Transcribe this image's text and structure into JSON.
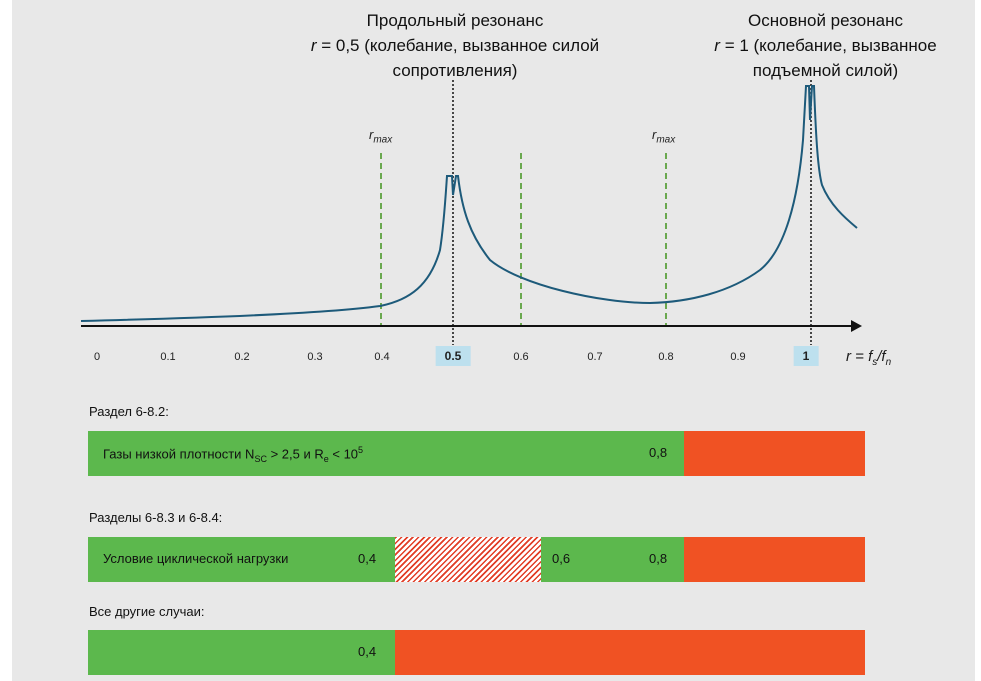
{
  "diagram": {
    "resonance_left": {
      "line1": "Продольный резонанс",
      "line2_var": "r",
      "line2_rest": " = 0,5 (колебание, вызванное силой",
      "line3": "сопротивления)"
    },
    "resonance_right": {
      "line1": "Основной резонанс",
      "line2_var": "r",
      "line2_rest": " = 1 (колебание, вызванное",
      "line3": "подъемной силой)"
    },
    "rmax_label": {
      "base": "r",
      "sub": "max"
    },
    "ticks": [
      "0",
      "0.1",
      "0.2",
      "0.3",
      "0.4",
      "0.5",
      "0.6",
      "0.7",
      "0.8",
      "0.9",
      "1"
    ],
    "highlighted_ticks": [
      "0.5",
      "1"
    ],
    "axis_label": {
      "r": "r",
      "eq": " = f",
      "s": "s",
      "slash": "/f",
      "n": "n"
    },
    "curve_color": "#1d5a7a",
    "dashed_line_color": "#6aa84f"
  },
  "sections": {
    "s1": {
      "title": "Раздел 6-8.2:",
      "text_main": "Газы низкой плотности N",
      "text_sub": "SC",
      "text_mid": " > 2,5 и R",
      "text_sub2": "e",
      "text_end": " < 10",
      "text_sup": "5",
      "value_08": "0,8"
    },
    "s2": {
      "title": "Разделы 6-8.3 и 6-8.4:",
      "text": "Условие циклической нагрузки",
      "value_04": "0,4",
      "value_06": "0,6",
      "value_08": "0,8"
    },
    "s3": {
      "title": "Все другие случаи:",
      "value_04": "0,4"
    }
  },
  "colors": {
    "green": "#5cb84d",
    "orange": "#f05223",
    "panel": "#e8e8e8",
    "highlight": "#bde0ee"
  }
}
